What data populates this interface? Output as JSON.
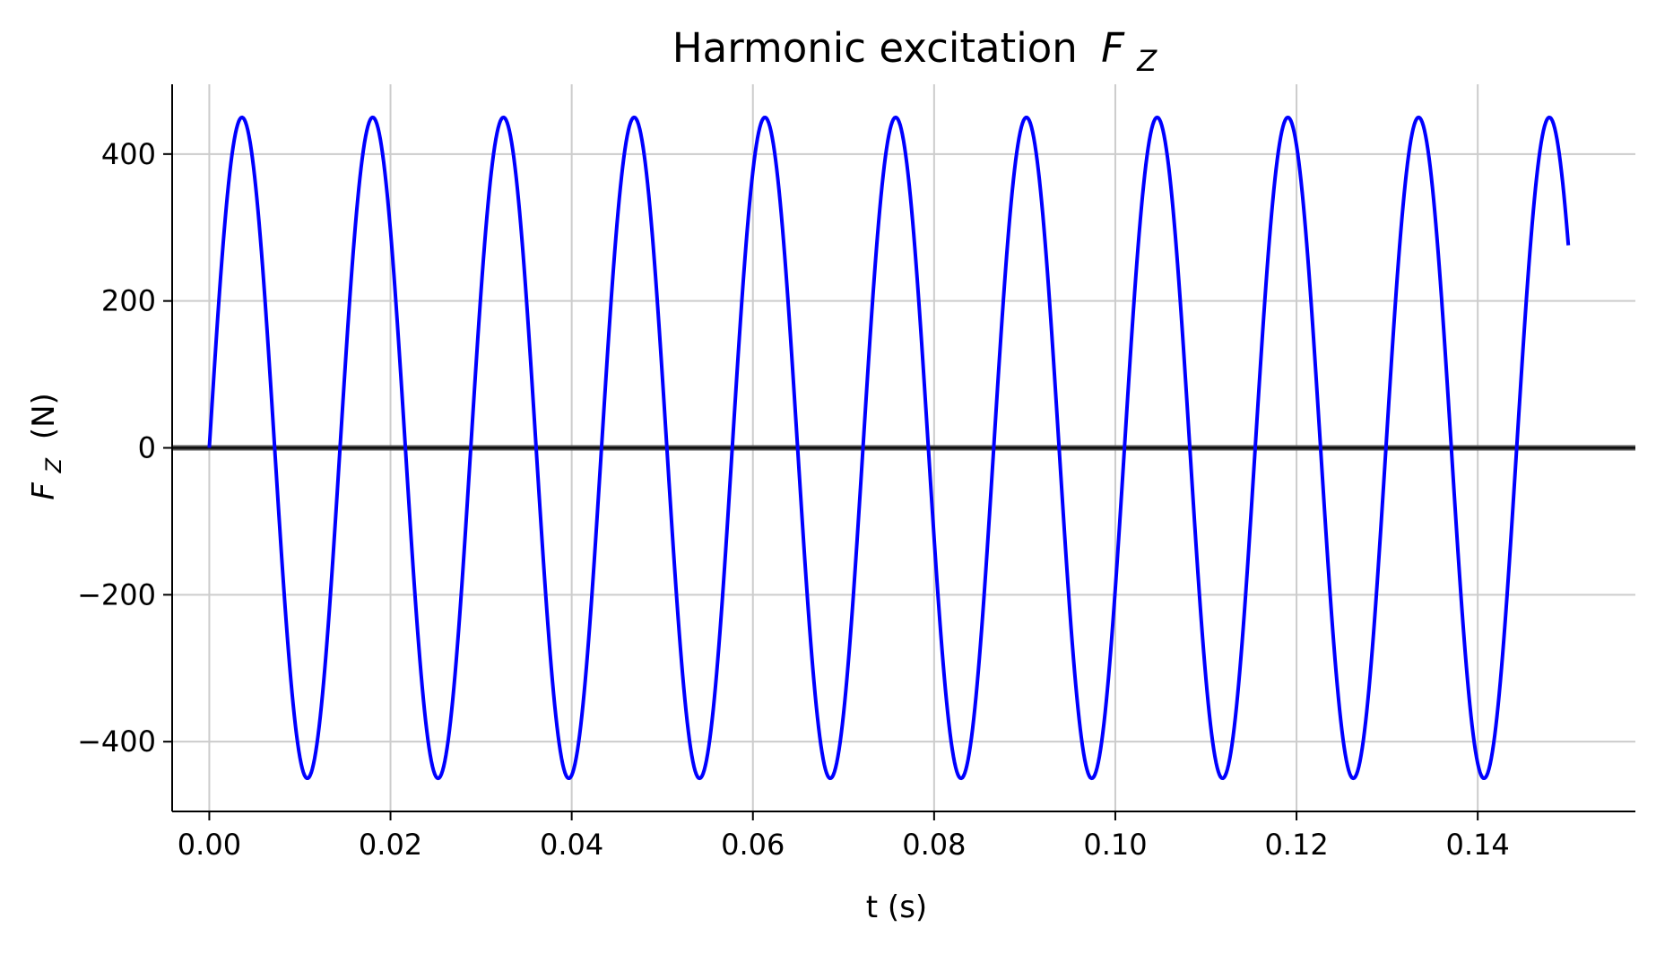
{
  "chart_data": {
    "type": "line",
    "title": "Harmonic excitation",
    "title_symbol": "F",
    "title_symbol_sub": "Z",
    "xlabel": "t (s)",
    "ylabel_symbol": "F",
    "ylabel_symbol_sub": "Z",
    "ylabel_unit": "(N)",
    "xlim": [
      -0.0041,
      0.1574
    ],
    "ylim": [
      -495,
      495
    ],
    "grid": true,
    "x_ticks": [
      0.0,
      0.02,
      0.04,
      0.06,
      0.08,
      0.1,
      0.12,
      0.14
    ],
    "x_tick_labels": [
      "0.00",
      "0.02",
      "0.04",
      "0.06",
      "0.08",
      "0.10",
      "0.12",
      "0.14"
    ],
    "y_ticks": [
      -400,
      -200,
      0,
      200,
      400
    ],
    "y_tick_labels": [
      "−400",
      "−200",
      "0",
      "200",
      "400"
    ],
    "series": [
      {
        "color": "#0000ff",
        "function": "amplitude * sin(2*pi*frequency*t)",
        "amplitude": 450,
        "frequency": 69.3,
        "t_start": 0.0,
        "t_end": 0.15,
        "num_samples": 1200
      }
    ],
    "reference_line": {
      "y": 0,
      "color": "#000000"
    }
  }
}
